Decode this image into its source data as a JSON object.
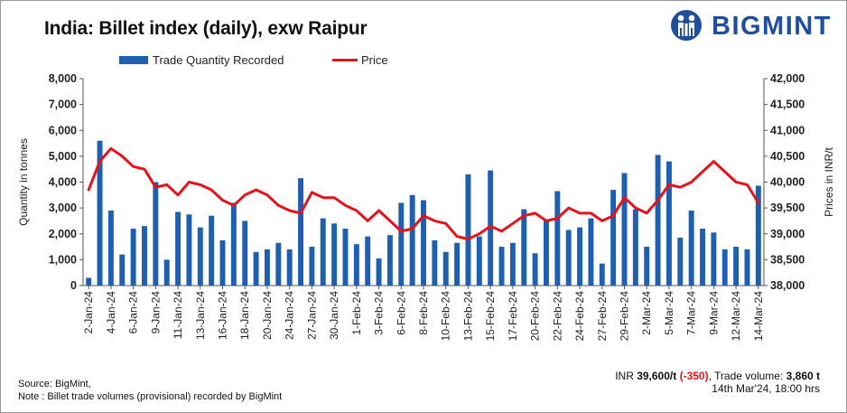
{
  "header": {
    "title": "India: Billet index (daily), exw Raipur",
    "brand": "BIGMINT"
  },
  "colors": {
    "bars": "#1f5fb0",
    "line": "#e3141b",
    "brand": "#1f4e9c"
  },
  "footer": {
    "source": "Source: BigMint,",
    "note": "Note : Billet trade volumes (provisional) recorded by BigMint",
    "price_prefix": "INR ",
    "price_value": "39,600/t",
    "price_change": "(-350)",
    "volume_label": ", Trade volume: ",
    "volume_value": "3,860 t",
    "timestamp": "14th Mar'24, 18:00 hrs"
  },
  "chart_data": {
    "type": "bar+line",
    "legend": {
      "bar": "Trade Quantity Recorded",
      "line": "Price"
    },
    "ylabel_left": "Quantity in tonnes",
    "ylabel_right": "Prices in INR/t",
    "ylim_left": [
      0,
      8000
    ],
    "ylim_right": [
      38000,
      42000
    ],
    "yticks_left": [
      "0",
      "1,000",
      "2,000",
      "3,000",
      "4,000",
      "5,000",
      "6,000",
      "7,000",
      "8,000"
    ],
    "yticks_right": [
      "38,000",
      "38,500",
      "39,000",
      "39,500",
      "40,000",
      "40,500",
      "41,000",
      "41,500",
      "42,000"
    ],
    "x_labels": [
      "2-Jan-24",
      "4-Jan-24",
      "6-Jan-24",
      "9-Jan-24",
      "11-Jan-24",
      "13-Jan-24",
      "16-Jan-24",
      "18-Jan-24",
      "20-Jan-24",
      "24-Jan-24",
      "27-Jan-24",
      "30-Jan-24",
      "1-Feb-24",
      "3-Feb-24",
      "6-Feb-24",
      "8-Feb-24",
      "10-Feb-24",
      "13-Feb-24",
      "15-Feb-24",
      "17-Feb-24",
      "20-Feb-24",
      "22-Feb-24",
      "24-Feb-24",
      "27-Feb-24",
      "29-Feb-24",
      "2-Mar-24",
      "5-Mar-24",
      "7-Mar-24",
      "9-Mar-24",
      "12-Mar-24",
      "14-Mar-24"
    ],
    "quantity": [
      300,
      5600,
      2900,
      1200,
      2200,
      2300,
      4000,
      1000,
      2850,
      2750,
      2250,
      2700,
      1750,
      3200,
      2500,
      1300,
      1400,
      1650,
      1400,
      4150,
      1500,
      2600,
      2400,
      2200,
      1600,
      1900,
      1050,
      1950,
      3200,
      3500,
      3300,
      1750,
      1300,
      1650,
      4300,
      1900,
      4450,
      1500,
      1650,
      2950,
      1250,
      2500,
      3650,
      2150,
      2250,
      2600,
      850,
      3700,
      4350,
      2950,
      1500,
      5050,
      4800,
      1850,
      2900,
      2200,
      2050,
      1400,
      1500,
      1400,
      3860
    ],
    "price": [
      39850,
      40400,
      40650,
      40500,
      40300,
      40250,
      39900,
      39950,
      39750,
      40000,
      39950,
      39850,
      39650,
      39550,
      39750,
      39850,
      39750,
      39550,
      39450,
      39400,
      39800,
      39700,
      39700,
      39550,
      39450,
      39250,
      39450,
      39250,
      39050,
      39100,
      39350,
      39250,
      39200,
      38950,
      38900,
      39000,
      39150,
      39050,
      39200,
      39350,
      39400,
      39250,
      39300,
      39500,
      39400,
      39400,
      39250,
      39350,
      39700,
      39500,
      39400,
      39650,
      39950,
      39900,
      40000,
      40200,
      40400,
      40200,
      40000,
      39950,
      39600
    ]
  }
}
